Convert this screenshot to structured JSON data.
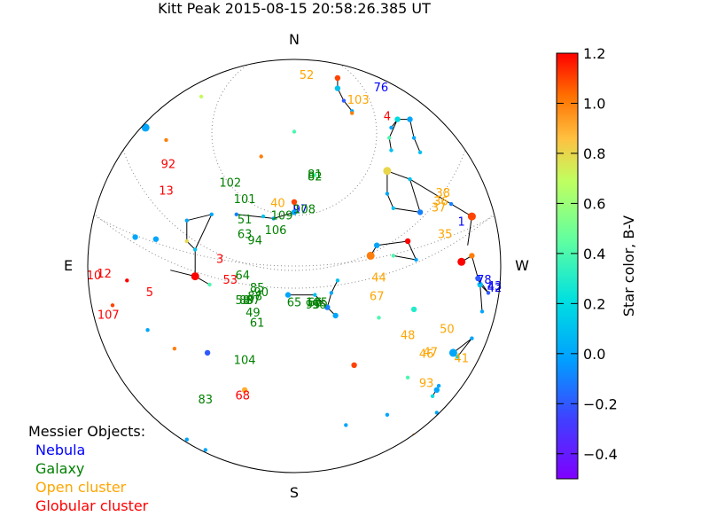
{
  "chart_data": {
    "type": "scatter",
    "title": "Kitt Peak 2015-08-15 20:58:26.385 UT",
    "projection": "polar sky chart (zenith at center, horizon at rim)",
    "compass": {
      "north": "N",
      "south": "S",
      "east": "E",
      "west": "W"
    },
    "colorbar": {
      "label": "Star color, B-V",
      "range": [
        -0.5,
        1.2
      ],
      "ticks": [
        "1.2",
        "1.0",
        "0.8",
        "0.6",
        "0.4",
        "0.2",
        "0.0",
        "−0.2",
        "−0.4"
      ],
      "tick_values": [
        1.2,
        1.0,
        0.8,
        0.6,
        0.4,
        0.2,
        0.0,
        -0.2,
        -0.4
      ],
      "colormap": "rainbow"
    },
    "legend": {
      "title": "Messier Objects:",
      "entries": [
        {
          "label": "Nebula",
          "color": "#0000ff"
        },
        {
          "label": "Galaxy",
          "color": "#008000"
        },
        {
          "label": "Open cluster",
          "color": "#ffa500"
        },
        {
          "label": "Globular cluster",
          "color": "#ff0000"
        }
      ]
    },
    "messier_objects": [
      {
        "label": "52",
        "kind": "Open cluster",
        "x": 0.06,
        "y": 0.92
      },
      {
        "label": "76",
        "kind": "Nebula",
        "x": 0.42,
        "y": 0.86
      },
      {
        "label": "103",
        "kind": "Open cluster",
        "x": 0.31,
        "y": 0.8
      },
      {
        "label": "92",
        "kind": "Globular cluster",
        "x": -0.61,
        "y": 0.49
      },
      {
        "label": "13",
        "kind": "Globular cluster",
        "x": -0.62,
        "y": 0.36
      },
      {
        "label": "102",
        "kind": "Galaxy",
        "x": -0.31,
        "y": 0.4
      },
      {
        "label": "82",
        "kind": "Galaxy",
        "x": 0.1,
        "y": 0.43
      },
      {
        "label": "81",
        "kind": "Galaxy",
        "x": 0.1,
        "y": 0.44
      },
      {
        "label": "101",
        "kind": "Galaxy",
        "x": -0.24,
        "y": 0.32
      },
      {
        "label": "40",
        "kind": "Open cluster",
        "x": -0.08,
        "y": 0.3
      },
      {
        "label": "97",
        "kind": "Nebula",
        "x": 0.03,
        "y": 0.27
      },
      {
        "label": "108",
        "kind": "Galaxy",
        "x": 0.05,
        "y": 0.27
      },
      {
        "label": "109",
        "kind": "Galaxy",
        "x": -0.06,
        "y": 0.24
      },
      {
        "label": "51",
        "kind": "Galaxy",
        "x": -0.24,
        "y": 0.22
      },
      {
        "label": "106",
        "kind": "Galaxy",
        "x": -0.09,
        "y": 0.17
      },
      {
        "label": "63",
        "kind": "Galaxy",
        "x": -0.24,
        "y": 0.15
      },
      {
        "label": "94",
        "kind": "Galaxy",
        "x": -0.19,
        "y": 0.12
      },
      {
        "label": "38",
        "kind": "Open cluster",
        "x": 0.72,
        "y": 0.35
      },
      {
        "label": "36",
        "kind": "Open cluster",
        "x": 0.71,
        "y": 0.31
      },
      {
        "label": "37",
        "kind": "Open cluster",
        "x": 0.7,
        "y": 0.28
      },
      {
        "label": "1",
        "kind": "Nebula",
        "x": 0.81,
        "y": 0.21
      },
      {
        "label": "35",
        "kind": "Open cluster",
        "x": 0.73,
        "y": 0.15
      },
      {
        "label": "3",
        "kind": "Globular cluster",
        "x": -0.36,
        "y": 0.03
      },
      {
        "label": "10",
        "kind": "Globular cluster",
        "x": -0.97,
        "y": -0.05
      },
      {
        "label": "12",
        "kind": "Globular cluster",
        "x": -0.92,
        "y": -0.04
      },
      {
        "label": "5",
        "kind": "Globular cluster",
        "x": -0.7,
        "y": -0.13
      },
      {
        "label": "53",
        "kind": "Globular cluster",
        "x": -0.31,
        "y": -0.07
      },
      {
        "label": "64",
        "kind": "Galaxy",
        "x": -0.25,
        "y": -0.05
      },
      {
        "label": "85",
        "kind": "Galaxy",
        "x": -0.18,
        "y": -0.11
      },
      {
        "label": "88",
        "kind": "Galaxy",
        "x": -0.19,
        "y": -0.15
      },
      {
        "label": "58",
        "kind": "Galaxy",
        "x": -0.25,
        "y": -0.17
      },
      {
        "label": "89",
        "kind": "Galaxy",
        "x": -0.23,
        "y": -0.17
      },
      {
        "label": "90",
        "kind": "Galaxy",
        "x": -0.16,
        "y": -0.13
      },
      {
        "label": "87",
        "kind": "Galaxy",
        "x": -0.2,
        "y": -0.17
      },
      {
        "label": "49",
        "kind": "Galaxy",
        "x": -0.2,
        "y": -0.23
      },
      {
        "label": "61",
        "kind": "Galaxy",
        "x": -0.18,
        "y": -0.28
      },
      {
        "label": "65",
        "kind": "Galaxy",
        "x": 0.0,
        "y": -0.18
      },
      {
        "label": "66",
        "kind": "Galaxy",
        "x": 0.1,
        "y": -0.18
      },
      {
        "label": "95",
        "kind": "Galaxy",
        "x": 0.09,
        "y": -0.19
      },
      {
        "label": "96",
        "kind": "Galaxy",
        "x": 0.12,
        "y": -0.19
      },
      {
        "label": "105",
        "kind": "Galaxy",
        "x": 0.11,
        "y": -0.18
      },
      {
        "label": "44",
        "kind": "Open cluster",
        "x": 0.41,
        "y": -0.06
      },
      {
        "label": "67",
        "kind": "Open cluster",
        "x": 0.4,
        "y": -0.15
      },
      {
        "label": "78",
        "kind": "Nebula",
        "x": 0.92,
        "y": -0.07
      },
      {
        "label": "42",
        "kind": "Nebula",
        "x": 0.97,
        "y": -0.11
      },
      {
        "label": "43",
        "kind": "Nebula",
        "x": 0.97,
        "y": -0.1
      },
      {
        "label": "107",
        "kind": "Globular cluster",
        "x": -0.9,
        "y": -0.24
      },
      {
        "label": "50",
        "kind": "Open cluster",
        "x": 0.74,
        "y": -0.31
      },
      {
        "label": "48",
        "kind": "Open cluster",
        "x": 0.55,
        "y": -0.34
      },
      {
        "label": "47",
        "kind": "Open cluster",
        "x": 0.66,
        "y": -0.42
      },
      {
        "label": "46",
        "kind": "Open cluster",
        "x": 0.64,
        "y": -0.43
      },
      {
        "label": "41",
        "kind": "Open cluster",
        "x": 0.81,
        "y": -0.45
      },
      {
        "label": "104",
        "kind": "Galaxy",
        "x": -0.24,
        "y": -0.46
      },
      {
        "label": "93",
        "kind": "Open cluster",
        "x": 0.64,
        "y": -0.57
      },
      {
        "label": "83",
        "kind": "Galaxy",
        "x": -0.43,
        "y": -0.65
      },
      {
        "label": "68",
        "kind": "Globular cluster",
        "x": -0.25,
        "y": -0.63
      },
      {
        "label": "4",
        "kind": "Globular cluster",
        "x": 0.45,
        "y": 0.72
      }
    ],
    "stars": [
      {
        "x": -0.72,
        "y": 0.67,
        "bv": 0.0,
        "mag": 1
      },
      {
        "x": 0.21,
        "y": 0.91,
        "bv": 1.1,
        "mag": 2
      },
      {
        "x": 0.21,
        "y": 0.86,
        "bv": 0.1,
        "mag": 2
      },
      {
        "x": 0.24,
        "y": 0.8,
        "bv": -0.2,
        "mag": 3
      },
      {
        "x": 0.28,
        "y": 0.75,
        "bv": 0.0,
        "mag": 3
      },
      {
        "x": 0.56,
        "y": 0.71,
        "bv": 0.0,
        "mag": 2
      },
      {
        "x": 0.5,
        "y": 0.71,
        "bv": 0.2,
        "mag": 2
      },
      {
        "x": 0.47,
        "y": 0.67,
        "bv": 0.0,
        "mag": 3
      },
      {
        "x": 0.58,
        "y": 0.62,
        "bv": 0.0,
        "mag": 3
      },
      {
        "x": 0.61,
        "y": 0.55,
        "bv": 0.1,
        "mag": 3
      },
      {
        "x": 0.46,
        "y": 0.62,
        "bv": 0.4,
        "mag": 3
      },
      {
        "x": 0.47,
        "y": 0.56,
        "bv": 0.1,
        "mag": 3
      },
      {
        "x": 0.45,
        "y": 0.46,
        "bv": 0.8,
        "mag": 1
      },
      {
        "x": 0.56,
        "y": 0.42,
        "bv": 0.1,
        "mag": 3
      },
      {
        "x": 0.45,
        "y": 0.35,
        "bv": 0.0,
        "mag": 3
      },
      {
        "x": 0.48,
        "y": 0.28,
        "bv": 0.1,
        "mag": 3
      },
      {
        "x": 0.61,
        "y": 0.26,
        "bv": -0.1,
        "mag": 2
      },
      {
        "x": 0.76,
        "y": 0.3,
        "bv": -0.1,
        "mag": 3
      },
      {
        "x": 0.86,
        "y": 0.24,
        "bv": 1.1,
        "mag": 1
      },
      {
        "x": 0.55,
        "y": 0.12,
        "bv": 1.2,
        "mag": 2
      },
      {
        "x": 0.4,
        "y": 0.1,
        "bv": 0.0,
        "mag": 2
      },
      {
        "x": 0.37,
        "y": 0.05,
        "bv": 1.0,
        "mag": 1
      },
      {
        "x": 0.48,
        "y": 0.05,
        "bv": 0.4,
        "mag": 3
      },
      {
        "x": 0.59,
        "y": 0.03,
        "bv": 0.0,
        "mag": 3
      },
      {
        "x": 0.86,
        "y": 0.05,
        "bv": 1.0,
        "mag": 2
      },
      {
        "x": 0.81,
        "y": 0.02,
        "bv": 1.2,
        "mag": 1
      },
      {
        "x": 0.89,
        "y": -0.06,
        "bv": -0.2,
        "mag": 2
      },
      {
        "x": 0.9,
        "y": -0.09,
        "bv": 0.1,
        "mag": 2
      },
      {
        "x": 0.91,
        "y": -0.22,
        "bv": 0.0,
        "mag": 3
      },
      {
        "x": 0.94,
        "y": -0.13,
        "bv": -0.2,
        "mag": 3
      },
      {
        "x": 0.77,
        "y": -0.42,
        "bv": 0.0,
        "mag": 1
      },
      {
        "x": 0.79,
        "y": -0.44,
        "bv": 0.2,
        "mag": 3
      },
      {
        "x": 0.86,
        "y": -0.35,
        "bv": 0.0,
        "mag": 3
      },
      {
        "x": 0.67,
        "y": -0.63,
        "bv": 0.2,
        "mag": 3
      },
      {
        "x": 0.7,
        "y": -0.58,
        "bv": 0.0,
        "mag": 3
      },
      {
        "x": 0.69,
        "y": -0.6,
        "bv": 0.0,
        "mag": 2
      },
      {
        "x": 0.69,
        "y": -0.71,
        "bv": 0.0,
        "mag": 3
      },
      {
        "x": 0.58,
        "y": -0.82,
        "bv": 1.0,
        "mag": 3
      },
      {
        "x": 0.55,
        "y": -0.54,
        "bv": 0.4,
        "mag": 3
      },
      {
        "x": 0.29,
        "y": -0.48,
        "bv": 1.1,
        "mag": 2
      },
      {
        "x": 0.58,
        "y": -0.21,
        "bv": 0.3,
        "mag": 2
      },
      {
        "x": 0.41,
        "y": -0.25,
        "bv": 0.4,
        "mag": 3
      },
      {
        "x": -0.48,
        "y": -0.05,
        "bv": 1.2,
        "mag": 1
      },
      {
        "x": -0.41,
        "y": -0.09,
        "bv": 0.4,
        "mag": 3
      },
      {
        "x": -0.52,
        "y": 0.22,
        "bv": 0.0,
        "mag": 3
      },
      {
        "x": -0.52,
        "y": 0.12,
        "bv": 0.8,
        "mag": 3
      },
      {
        "x": -0.48,
        "y": 0.08,
        "bv": 0.1,
        "mag": 3
      },
      {
        "x": -0.4,
        "y": 0.25,
        "bv": 0.0,
        "mag": 3
      },
      {
        "x": -0.28,
        "y": 0.25,
        "bv": -0.1,
        "mag": 3
      },
      {
        "x": -0.1,
        "y": 0.23,
        "bv": 0.0,
        "mag": 3
      },
      {
        "x": 0.0,
        "y": 0.31,
        "bv": 1.1,
        "mag": 2
      },
      {
        "x": 0.0,
        "y": 0.26,
        "bv": 0.0,
        "mag": 2
      },
      {
        "x": -0.15,
        "y": 0.24,
        "bv": 0.1,
        "mag": 3
      },
      {
        "x": -0.03,
        "y": -0.14,
        "bv": 0.0,
        "mag": 2
      },
      {
        "x": 0.1,
        "y": -0.14,
        "bv": 0.1,
        "mag": 3
      },
      {
        "x": 0.16,
        "y": -0.2,
        "bv": -0.1,
        "mag": 2
      },
      {
        "x": 0.2,
        "y": -0.24,
        "bv": 0.0,
        "mag": 2
      },
      {
        "x": 0.18,
        "y": -0.13,
        "bv": 0.0,
        "mag": 3
      },
      {
        "x": 0.21,
        "y": -0.07,
        "bv": 0.1,
        "mag": 3
      },
      {
        "x": -0.77,
        "y": 0.14,
        "bv": 0.0,
        "mag": 2
      },
      {
        "x": -0.67,
        "y": 0.13,
        "bv": 0.0,
        "mag": 2
      },
      {
        "x": -0.81,
        "y": -0.07,
        "bv": 1.2,
        "mag": 3
      },
      {
        "x": -0.88,
        "y": -0.19,
        "bv": 1.1,
        "mag": 3
      },
      {
        "x": -0.93,
        "y": -0.44,
        "bv": 0.0,
        "mag": 2
      },
      {
        "x": -0.88,
        "y": -0.53,
        "bv": 0.0,
        "mag": 2
      },
      {
        "x": -0.42,
        "y": -0.42,
        "bv": -0.2,
        "mag": 2
      },
      {
        "x": 0.25,
        "y": -0.77,
        "bv": 0.0,
        "mag": 3
      },
      {
        "x": -0.52,
        "y": -0.84,
        "bv": 0.0,
        "mag": 3
      },
      {
        "x": -0.43,
        "y": -0.89,
        "bv": 0.0,
        "mag": 3
      },
      {
        "x": -0.24,
        "y": -0.6,
        "bv": 0.9,
        "mag": 2
      },
      {
        "x": 0.0,
        "y": 0.65,
        "bv": 0.4,
        "mag": 3
      },
      {
        "x": -0.16,
        "y": 0.53,
        "bv": 1.0,
        "mag": 3
      },
      {
        "x": 0.28,
        "y": 0.74,
        "bv": 1.0,
        "mag": 3
      },
      {
        "x": 0.1,
        "y": 0.44,
        "bv": 0.4,
        "mag": 3
      },
      {
        "x": -0.62,
        "y": 0.61,
        "bv": 1.0,
        "mag": 3
      },
      {
        "x": -0.45,
        "y": 0.82,
        "bv": 0.7,
        "mag": 3
      },
      {
        "x": 0.45,
        "y": -0.72,
        "bv": 0.0,
        "mag": 3
      },
      {
        "x": -0.71,
        "y": -0.31,
        "bv": 0.0,
        "mag": 3
      },
      {
        "x": -0.58,
        "y": -0.4,
        "bv": 1.0,
        "mag": 3
      },
      {
        "x": 0.35,
        "y": -0.96,
        "bv": 0.4,
        "mag": 3
      }
    ],
    "constellation_lines": [
      [
        [
          0.21,
          0.91
        ],
        [
          0.21,
          0.86
        ],
        [
          0.24,
          0.8
        ],
        [
          0.28,
          0.75
        ]
      ],
      [
        [
          0.5,
          0.71
        ],
        [
          0.56,
          0.71
        ],
        [
          0.58,
          0.62
        ],
        [
          0.61,
          0.55
        ]
      ],
      [
        [
          0.47,
          0.67
        ],
        [
          0.5,
          0.71
        ],
        [
          0.46,
          0.62
        ],
        [
          0.47,
          0.56
        ]
      ],
      [
        [
          0.45,
          0.46
        ],
        [
          0.56,
          0.42
        ],
        [
          0.61,
          0.26
        ],
        [
          0.48,
          0.28
        ],
        [
          0.45,
          0.35
        ],
        [
          0.45,
          0.46
        ]
      ],
      [
        [
          0.56,
          0.42
        ],
        [
          0.76,
          0.3
        ],
        [
          0.86,
          0.24
        ],
        [
          0.84,
          0.1
        ]
      ],
      [
        [
          0.37,
          0.05
        ],
        [
          0.4,
          0.1
        ],
        [
          0.55,
          0.12
        ],
        [
          0.59,
          0.03
        ],
        [
          0.48,
          0.05
        ]
      ],
      [
        [
          0.81,
          0.02
        ],
        [
          0.86,
          0.05
        ],
        [
          0.89,
          -0.06
        ],
        [
          0.9,
          -0.09
        ],
        [
          0.91,
          -0.22
        ]
      ],
      [
        [
          0.89,
          -0.06
        ],
        [
          0.94,
          -0.13
        ],
        [
          0.9,
          -0.09
        ]
      ],
      [
        [
          0.77,
          -0.42
        ],
        [
          0.86,
          -0.35
        ],
        [
          0.79,
          -0.44
        ]
      ],
      [
        [
          0.69,
          -0.6
        ],
        [
          0.7,
          -0.58
        ],
        [
          0.67,
          -0.63
        ]
      ],
      [
        [
          -0.52,
          0.22
        ],
        [
          -0.52,
          0.12
        ],
        [
          -0.48,
          0.08
        ],
        [
          -0.48,
          -0.05
        ],
        [
          -0.41,
          -0.09
        ]
      ],
      [
        [
          -0.52,
          0.22
        ],
        [
          -0.4,
          0.25
        ],
        [
          -0.48,
          0.08
        ]
      ],
      [
        [
          -0.6,
          -0.02
        ],
        [
          -0.48,
          -0.05
        ]
      ],
      [
        [
          -0.28,
          0.25
        ],
        [
          -0.1,
          0.23
        ],
        [
          0.0,
          0.26
        ],
        [
          0.0,
          0.31
        ]
      ],
      [
        [
          -0.03,
          -0.14
        ],
        [
          0.1,
          -0.14
        ],
        [
          0.16,
          -0.2
        ],
        [
          0.2,
          -0.24
        ]
      ],
      [
        [
          0.16,
          -0.2
        ],
        [
          0.18,
          -0.13
        ],
        [
          0.21,
          -0.07
        ]
      ]
    ]
  }
}
